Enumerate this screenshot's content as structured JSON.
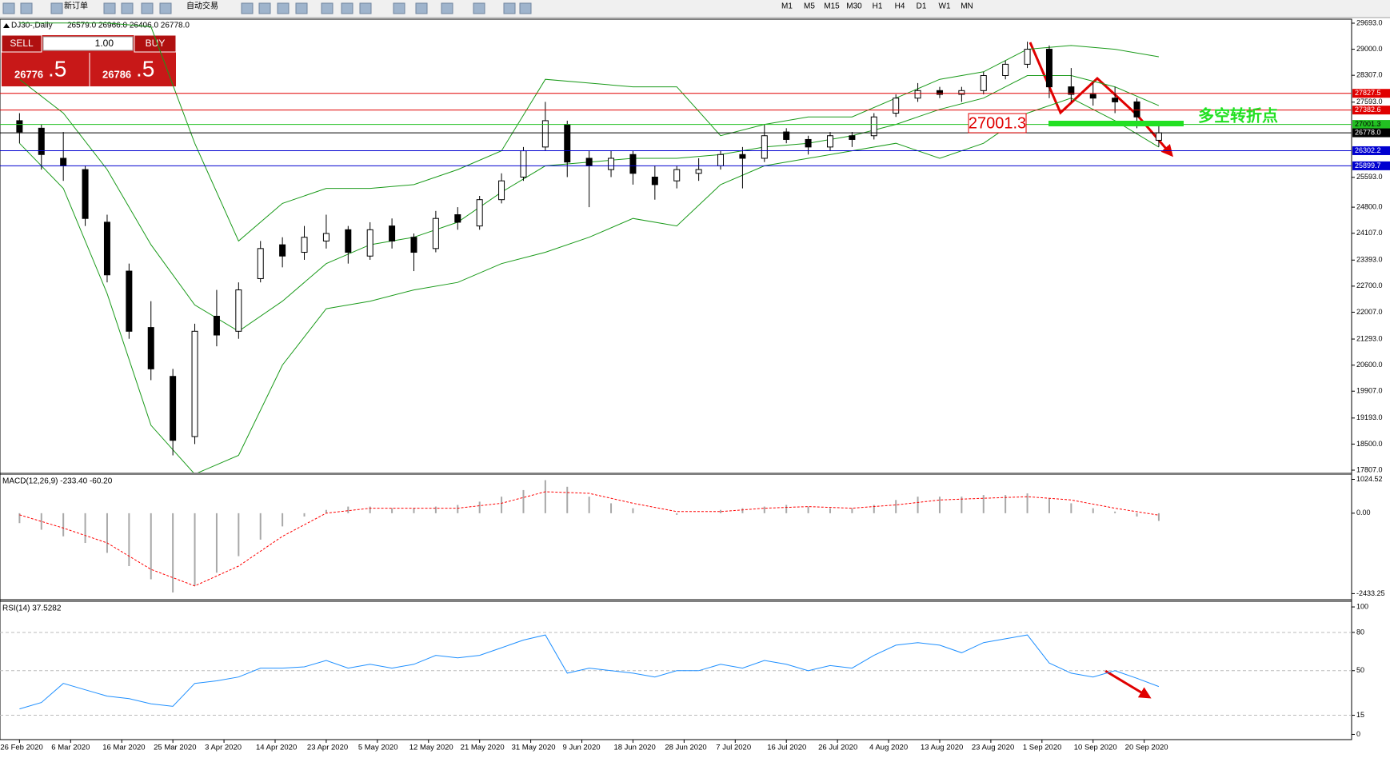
{
  "toolbar": {
    "new_order": "新订单",
    "auto_trade": "自动交易",
    "timeframes": [
      "M1",
      "M5",
      "M15",
      "M30",
      "H1",
      "H4",
      "D1",
      "W1",
      "MN"
    ]
  },
  "trade_panel": {
    "sell": "SELL",
    "buy": "BUY",
    "volume": "1.00",
    "sell_price": "26776",
    "sell_fraction": ".5",
    "buy_price": "26786",
    "buy_fraction": ".5"
  },
  "chart_data": [
    {
      "type": "candlestick",
      "title": "DJ30-,Daily",
      "subtitle": "26579.0 26966.0 26406.0 26778.0",
      "xlim": [
        -2.67,
        182.4
      ],
      "ylim": [
        17743,
        29799
      ],
      "xticks": [
        {
          "value": 0,
          "label": "26 Feb 2020"
        },
        {
          "value": 7,
          "label": "6 Mar 2020"
        },
        {
          "value": 14,
          "label": "16 Mar 2020"
        },
        {
          "value": 21,
          "label": "25 Mar 2020"
        },
        {
          "value": 28,
          "label": "3 Apr 2020"
        },
        {
          "value": 35,
          "label": "14 Apr 2020"
        },
        {
          "value": 42,
          "label": "23 Apr 2020"
        },
        {
          "value": 49,
          "label": "5 May 2020"
        },
        {
          "value": 56,
          "label": "12 May 2020"
        },
        {
          "value": 63,
          "label": "21 May 2020"
        },
        {
          "value": 70,
          "label": "31 May 2020"
        },
        {
          "value": 77,
          "label": "9 Jun 2020"
        },
        {
          "value": 84,
          "label": "18 Jun 2020"
        },
        {
          "value": 91,
          "label": "28 Jun 2020"
        },
        {
          "value": 98,
          "label": "7 Jul 2020"
        },
        {
          "value": 105,
          "label": "16 Jul 2020"
        },
        {
          "value": 112,
          "label": "26 Jul 2020"
        },
        {
          "value": 119,
          "label": "4 Aug 2020"
        },
        {
          "value": 126,
          "label": "13 Aug 2020"
        },
        {
          "value": 133,
          "label": "23 Aug 2020"
        },
        {
          "value": 140,
          "label": "1 Sep 2020"
        },
        {
          "value": 147,
          "label": "10 Sep 2020"
        },
        {
          "value": 154,
          "label": "20 Sep 2020"
        }
      ],
      "yticks": [
        {
          "value": 29693,
          "label": "29693.0"
        },
        {
          "value": 29000,
          "label": "29000.0"
        },
        {
          "value": 28307,
          "label": "28307.0"
        },
        {
          "value": 27593,
          "label": "27593.0"
        },
        {
          "value": 25593,
          "label": "25593.0"
        },
        {
          "value": 24800,
          "label": "24800.0"
        },
        {
          "value": 24107,
          "label": "24107.0"
        },
        {
          "value": 23393,
          "label": "23393.0"
        },
        {
          "value": 22700,
          "label": "22700.0"
        },
        {
          "value": 22007,
          "label": "22007.0"
        },
        {
          "value": 21293,
          "label": "21293.0"
        },
        {
          "value": 20600,
          "label": "20600.0"
        },
        {
          "value": 19907,
          "label": "19907.0"
        },
        {
          "value": 19193,
          "label": "19193.0"
        },
        {
          "value": 18500,
          "label": "18500.0"
        },
        {
          "value": 17807,
          "label": "17807.0"
        }
      ],
      "x": [
        0,
        3,
        6,
        9,
        12,
        15,
        18,
        21,
        24,
        27,
        30,
        33,
        36,
        39,
        42,
        45,
        48,
        51,
        54,
        57,
        60,
        63,
        66,
        69,
        72,
        75,
        78,
        81,
        84,
        87,
        90,
        93,
        96,
        99,
        102,
        105,
        108,
        111,
        114,
        117,
        120,
        123,
        126,
        129,
        132,
        135,
        138,
        141,
        144,
        147,
        150,
        153,
        156
      ],
      "ohlc": [
        [
          27100,
          27300,
          26500,
          26800
        ],
        [
          26900,
          27000,
          25800,
          26200
        ],
        [
          26100,
          26800,
          25500,
          25900
        ],
        [
          25800,
          25900,
          24300,
          24500
        ],
        [
          24400,
          24600,
          22800,
          23000
        ],
        [
          23100,
          23300,
          21300,
          21500
        ],
        [
          21600,
          22300,
          20200,
          20500
        ],
        [
          20300,
          20500,
          18200,
          18600
        ],
        [
          18700,
          21700,
          18500,
          21500
        ],
        [
          21900,
          22600,
          21100,
          21400
        ],
        [
          21500,
          22800,
          21300,
          22600
        ],
        [
          22900,
          23900,
          22800,
          23700
        ],
        [
          23800,
          24000,
          23200,
          23500
        ],
        [
          23600,
          24300,
          23400,
          24000
        ],
        [
          23900,
          24600,
          23700,
          24100
        ],
        [
          24200,
          24300,
          23300,
          23600
        ],
        [
          23500,
          24400,
          23400,
          24200
        ],
        [
          24300,
          24500,
          23700,
          23900
        ],
        [
          24000,
          24100,
          23100,
          23600
        ],
        [
          23700,
          24700,
          23600,
          24500
        ],
        [
          24600,
          24800,
          24200,
          24400
        ],
        [
          24300,
          25100,
          24200,
          25000
        ],
        [
          25000,
          25700,
          24900,
          25500
        ],
        [
          25600,
          26400,
          25500,
          26300
        ],
        [
          26400,
          27600,
          26300,
          27100
        ],
        [
          27000,
          27100,
          25600,
          26000
        ],
        [
          26100,
          26300,
          24800,
          25900
        ],
        [
          25800,
          26300,
          25600,
          26100
        ],
        [
          26200,
          26300,
          25400,
          25700
        ],
        [
          25600,
          25900,
          25000,
          25400
        ],
        [
          25500,
          25900,
          25300,
          25800
        ],
        [
          25700,
          26100,
          25500,
          25800
        ],
        [
          25900,
          26300,
          25800,
          26200
        ],
        [
          26200,
          26400,
          25300,
          26100
        ],
        [
          26100,
          27000,
          26000,
          26700
        ],
        [
          26800,
          26900,
          26500,
          26600
        ],
        [
          26600,
          26700,
          26200,
          26400
        ],
        [
          26400,
          26800,
          26300,
          26700
        ],
        [
          26700,
          26800,
          26400,
          26600
        ],
        [
          26700,
          27300,
          26600,
          27200
        ],
        [
          27300,
          27800,
          27200,
          27700
        ],
        [
          27700,
          28100,
          27600,
          27900
        ],
        [
          27900,
          28000,
          27700,
          27800
        ],
        [
          27800,
          28000,
          27600,
          27900
        ],
        [
          27900,
          28400,
          27800,
          28300
        ],
        [
          28300,
          28700,
          28200,
          28600
        ],
        [
          28600,
          29200,
          28500,
          29000
        ],
        [
          29000,
          29100,
          27700,
          28000
        ],
        [
          28000,
          28500,
          27600,
          27800
        ],
        [
          27800,
          28100,
          27500,
          27700
        ],
        [
          27700,
          28000,
          27300,
          27600
        ],
        [
          27600,
          27700,
          26900,
          27200
        ],
        [
          26579,
          26966,
          26406,
          26778
        ]
      ],
      "bull_color": "#ffffff",
      "bear_color": "#000000",
      "bands": {
        "color": "#1a9a1a",
        "x": [
          0,
          6,
          12,
          18,
          24,
          30,
          36,
          42,
          48,
          54,
          60,
          66,
          72,
          78,
          84,
          90,
          96,
          102,
          108,
          114,
          120,
          126,
          132,
          138,
          144,
          150,
          156
        ],
        "upper": [
          29700,
          29700,
          29700,
          29600,
          26500,
          23900,
          24900,
          25300,
          25300,
          25400,
          25800,
          26300,
          28200,
          28100,
          28000,
          28000,
          26700,
          27000,
          27200,
          27200,
          27700,
          28200,
          28400,
          29000,
          29100,
          29000,
          28800
        ],
        "middle": [
          28200,
          27300,
          25800,
          23800,
          22200,
          21500,
          22300,
          23300,
          23800,
          24000,
          24400,
          25200,
          25900,
          26000,
          26100,
          26100,
          26200,
          26400,
          26500,
          26700,
          27000,
          27400,
          27700,
          28300,
          28300,
          28000,
          27500
        ],
        "lower": [
          26500,
          25300,
          22500,
          19000,
          17700,
          18200,
          20600,
          22100,
          22300,
          22600,
          22800,
          23300,
          23600,
          24000,
          24500,
          24300,
          25400,
          25900,
          26100,
          26300,
          26500,
          26100,
          26500,
          27300,
          27700,
          27100,
          26400
        ]
      },
      "levels": [
        {
          "value": 27827.5,
          "label": "27827.5",
          "color": "#e00000",
          "text_color": "#ffffff"
        },
        {
          "value": 27382.6,
          "label": "27382.6",
          "color": "#e00000",
          "text_color": "#ffffff"
        },
        {
          "value": 27001.3,
          "label": "27001.3",
          "color": "#22c022",
          "text_color": "#000000"
        },
        {
          "value": 26778,
          "label": "26778.0",
          "color": "#000000",
          "text_color": "#ffffff"
        },
        {
          "value": 26302.2,
          "label": "26302.2",
          "color": "#0000d0",
          "text_color": "#ffffff"
        },
        {
          "value": 25899.7,
          "label": "25899.7",
          "color": "#0000d0",
          "text_color": "#ffffff"
        }
      ],
      "annotations": [
        {
          "text": "27001.3",
          "color": "#e00000"
        },
        {
          "text": "多空转折点",
          "color": "#22e022"
        }
      ]
    },
    {
      "type": "macd",
      "title": "MACD(12,26,9) -233.40 -60.20",
      "xlim": [
        -2.67,
        182.4
      ],
      "ylim": [
        -2593,
        1157.6
      ],
      "yticks": [
        1024.52,
        {
          "value": 0,
          "label": "0.00"
        },
        -2433.25
      ],
      "x": [
        0,
        3,
        6,
        9,
        12,
        15,
        18,
        21,
        24,
        27,
        30,
        33,
        36,
        39,
        42,
        45,
        48,
        51,
        54,
        57,
        60,
        63,
        66,
        69,
        72,
        75,
        78,
        81,
        84,
        87,
        90,
        93,
        96,
        99,
        102,
        105,
        108,
        111,
        114,
        117,
        120,
        123,
        126,
        129,
        132,
        135,
        138,
        141,
        144,
        147,
        150,
        153,
        156
      ],
      "histogram": [
        -300,
        -500,
        -700,
        -900,
        -1200,
        -1600,
        -2000,
        -2400,
        -2200,
        -1800,
        -1300,
        -800,
        -400,
        -100,
        100,
        200,
        200,
        150,
        150,
        200,
        250,
        350,
        500,
        700,
        1000,
        800,
        500,
        300,
        150,
        0,
        -50,
        0,
        100,
        150,
        200,
        250,
        200,
        150,
        150,
        250,
        400,
        500,
        500,
        500,
        550,
        550,
        600,
        450,
        300,
        150,
        50,
        -100,
        -233.4
      ],
      "histogram_color": "#a8a8a8",
      "signal_x": [
        0,
        6,
        12,
        18,
        24,
        30,
        36,
        42,
        48,
        54,
        60,
        66,
        72,
        78,
        84,
        90,
        96,
        102,
        108,
        114,
        120,
        126,
        132,
        138,
        144,
        150,
        156
      ],
      "signal": [
        -50,
        -450,
        -900,
        -1700,
        -2200,
        -1600,
        -700,
        0,
        150,
        150,
        150,
        300,
        650,
        600,
        300,
        50,
        50,
        150,
        200,
        150,
        250,
        400,
        450,
        500,
        400,
        150,
        -60.2
      ],
      "signal_color": "#ff0000"
    },
    {
      "type": "line",
      "title": "RSI(14) 37.5282",
      "xlim": [
        -2.67,
        182.4
      ],
      "ylim": [
        -4.1,
        103.8
      ],
      "yticks": [
        100,
        80,
        50,
        15,
        0
      ],
      "x": [
        0,
        3,
        6,
        9,
        12,
        15,
        18,
        21,
        24,
        27,
        30,
        33,
        36,
        39,
        42,
        45,
        48,
        51,
        54,
        57,
        60,
        63,
        66,
        69,
        72,
        75,
        78,
        81,
        84,
        87,
        90,
        93,
        96,
        99,
        102,
        105,
        108,
        111,
        114,
        117,
        120,
        123,
        126,
        129,
        132,
        135,
        138,
        141,
        144,
        147,
        150,
        153,
        156
      ],
      "values": [
        20,
        25,
        40,
        35,
        30,
        28,
        24,
        22,
        40,
        42,
        45,
        52,
        52,
        53,
        58,
        52,
        55,
        52,
        55,
        62,
        60,
        62,
        68,
        74,
        78,
        48,
        52,
        50,
        48,
        45,
        50,
        50,
        55,
        52,
        58,
        55,
        50,
        54,
        52,
        62,
        70,
        72,
        70,
        64,
        72,
        75,
        78,
        56,
        48,
        45,
        50,
        44,
        37.5282
      ],
      "color": "#1e8fff"
    }
  ]
}
